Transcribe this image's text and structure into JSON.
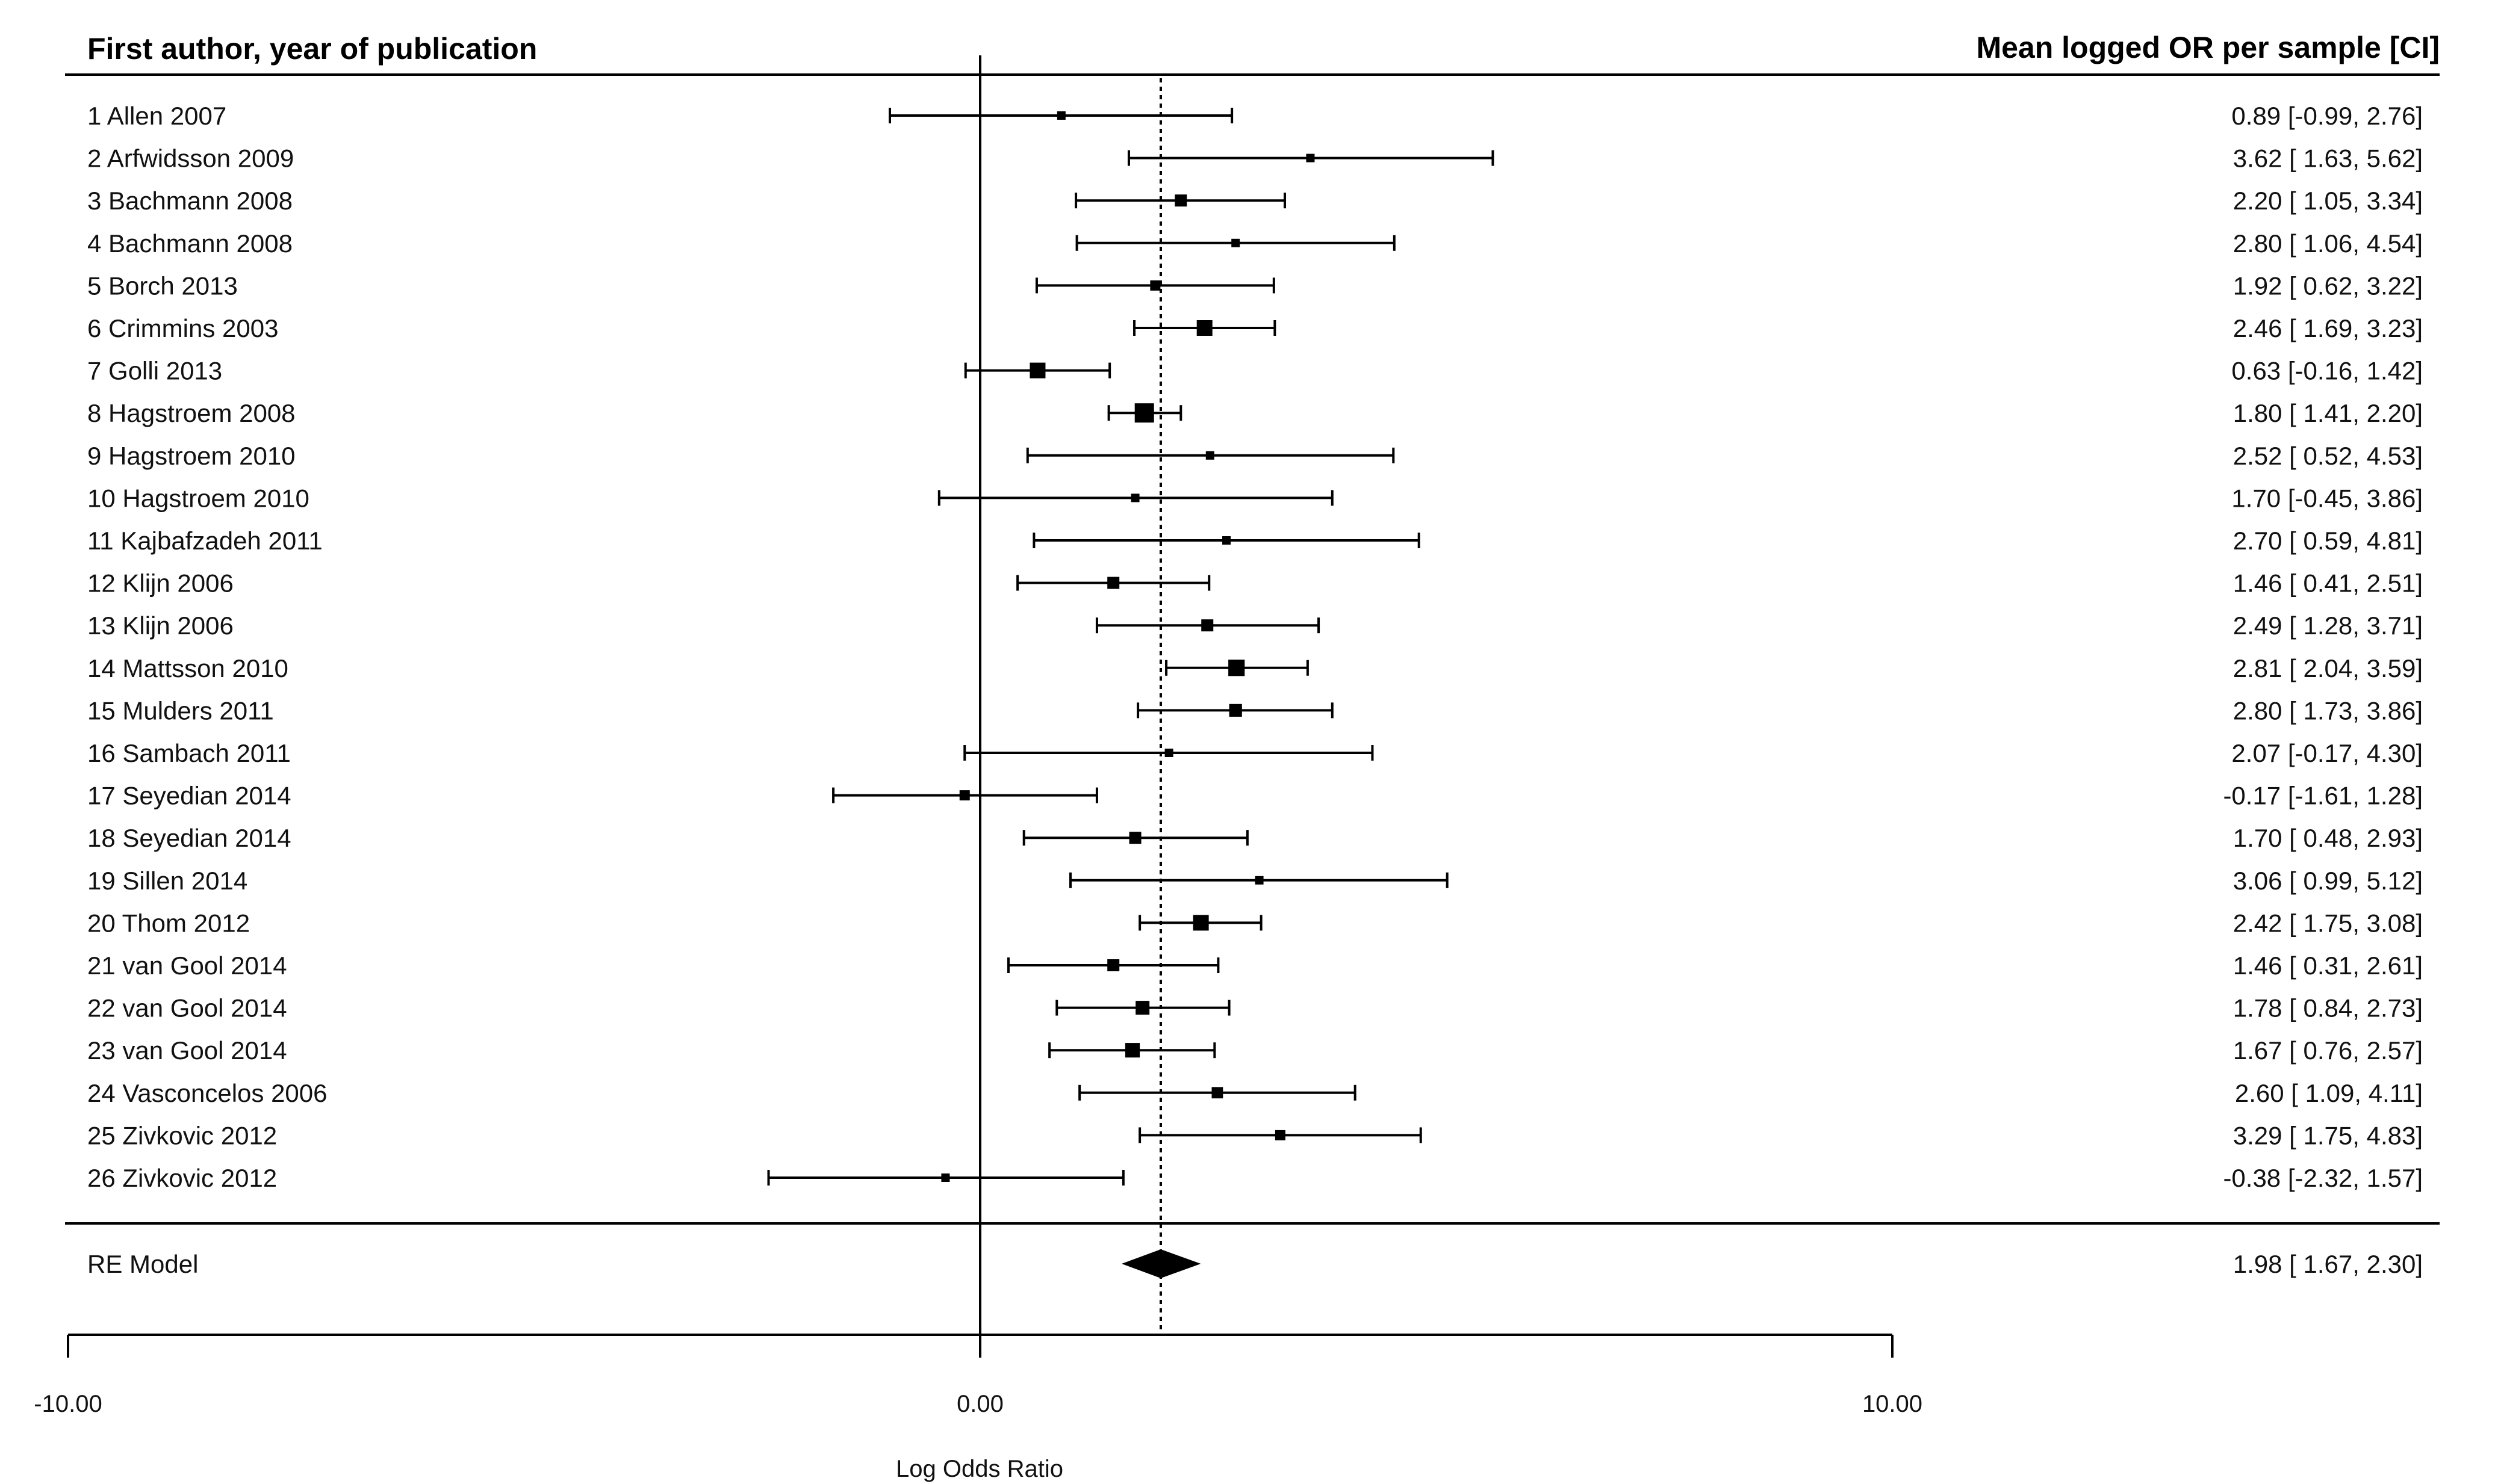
{
  "header": {
    "left": "First author, year of publication",
    "right": "Mean logged OR per sample [CI]"
  },
  "chart_data": {
    "type": "forest",
    "xlabel": "Log Odds Ratio",
    "xlim": [
      -10,
      10
    ],
    "xticks": [
      {
        "value": -10,
        "label": "-10.00"
      },
      {
        "value": 0,
        "label": "0.00"
      },
      {
        "value": 10,
        "label": "10.00"
      }
    ],
    "reference_line": 0,
    "summary_line": 1.98,
    "studies": [
      {
        "label": "1 Allen 2007",
        "est": 0.89,
        "lo": -0.99,
        "hi": 2.76,
        "text": "0.89 [-0.99, 2.76]",
        "weight": 1
      },
      {
        "label": "2 Arfwidsson 2009",
        "est": 3.62,
        "lo": 1.63,
        "hi": 5.62,
        "text": "3.62 [ 1.63, 5.62]",
        "weight": 1
      },
      {
        "label": "3 Bachmann 2008",
        "est": 2.2,
        "lo": 1.05,
        "hi": 3.34,
        "text": "2.20 [ 1.05, 3.34]",
        "weight": 2
      },
      {
        "label": "4 Bachmann 2008",
        "est": 2.8,
        "lo": 1.06,
        "hi": 4.54,
        "text": "2.80 [ 1.06, 4.54]",
        "weight": 1
      },
      {
        "label": "5 Borch 2013",
        "est": 1.92,
        "lo": 0.62,
        "hi": 3.22,
        "text": "1.92 [ 0.62, 3.22]",
        "weight": 1.5
      },
      {
        "label": "6 Crimmins 2003",
        "est": 2.46,
        "lo": 1.69,
        "hi": 3.23,
        "text": "2.46 [ 1.69, 3.23]",
        "weight": 3
      },
      {
        "label": "7 Golli 2013",
        "est": 0.63,
        "lo": -0.16,
        "hi": 1.42,
        "text": "0.63 [-0.16, 1.42]",
        "weight": 3
      },
      {
        "label": "8 Hagstroem 2008",
        "est": 1.8,
        "lo": 1.41,
        "hi": 2.2,
        "text": "1.80 [ 1.41, 2.20]",
        "weight": 4
      },
      {
        "label": "9 Hagstroem 2010",
        "est": 2.52,
        "lo": 0.52,
        "hi": 4.53,
        "text": "2.52 [ 0.52, 4.53]",
        "weight": 1
      },
      {
        "label": "10 Hagstroem 2010",
        "est": 1.7,
        "lo": -0.45,
        "hi": 3.86,
        "text": "1.70 [-0.45, 3.86]",
        "weight": 1
      },
      {
        "label": "11 Kajbafzadeh 2011",
        "est": 2.7,
        "lo": 0.59,
        "hi": 4.81,
        "text": "2.70 [ 0.59, 4.81]",
        "weight": 1
      },
      {
        "label": "12 Klijn 2006",
        "est": 1.46,
        "lo": 0.41,
        "hi": 2.51,
        "text": "1.46 [ 0.41, 2.51]",
        "weight": 2
      },
      {
        "label": "13 Klijn 2006",
        "est": 2.49,
        "lo": 1.28,
        "hi": 3.71,
        "text": "2.49 [ 1.28, 3.71]",
        "weight": 2
      },
      {
        "label": "14 Mattsson 2010",
        "est": 2.81,
        "lo": 2.04,
        "hi": 3.59,
        "text": "2.81 [ 2.04, 3.59]",
        "weight": 3.2
      },
      {
        "label": "15 Mulders 2011",
        "est": 2.8,
        "lo": 1.73,
        "hi": 3.86,
        "text": "2.80 [ 1.73, 3.86]",
        "weight": 2.2
      },
      {
        "label": "16 Sambach 2011",
        "est": 2.07,
        "lo": -0.17,
        "hi": 4.3,
        "text": "2.07 [-0.17, 4.30]",
        "weight": 1
      },
      {
        "label": "17 Seyedian 2014",
        "est": -0.17,
        "lo": -1.61,
        "hi": 1.28,
        "text": "-0.17 [-1.61, 1.28]",
        "weight": 1.5
      },
      {
        "label": "18 Seyedian 2014",
        "est": 1.7,
        "lo": 0.48,
        "hi": 2.93,
        "text": "1.70 [ 0.48, 2.93]",
        "weight": 2
      },
      {
        "label": "19 Sillen 2014",
        "est": 3.06,
        "lo": 0.99,
        "hi": 5.12,
        "text": "3.06 [ 0.99, 5.12]",
        "weight": 1
      },
      {
        "label": "20 Thom 2012",
        "est": 2.42,
        "lo": 1.75,
        "hi": 3.08,
        "text": "2.42 [ 1.75, 3.08]",
        "weight": 3
      },
      {
        "label": "21 van Gool 2014",
        "est": 1.46,
        "lo": 0.31,
        "hi": 2.61,
        "text": "1.46 [ 0.31, 2.61]",
        "weight": 2
      },
      {
        "label": "22 van Gool 2014",
        "est": 1.78,
        "lo": 0.84,
        "hi": 2.73,
        "text": "1.78 [ 0.84, 2.73]",
        "weight": 2.5
      },
      {
        "label": "23 van Gool 2014",
        "est": 1.67,
        "lo": 0.76,
        "hi": 2.57,
        "text": "1.67 [ 0.76, 2.57]",
        "weight": 2.7
      },
      {
        "label": "24 Vasconcelos 2006",
        "est": 2.6,
        "lo": 1.09,
        "hi": 4.11,
        "text": "2.60 [ 1.09, 4.11]",
        "weight": 1.8
      },
      {
        "label": "25 Zivkovic 2012",
        "est": 3.29,
        "lo": 1.75,
        "hi": 4.83,
        "text": "3.29 [ 1.75, 4.83]",
        "weight": 1.5
      },
      {
        "label": "26 Zivkovic 2012",
        "est": -0.38,
        "lo": -2.32,
        "hi": 1.57,
        "text": "-0.38 [-2.32, 1.57]",
        "weight": 1
      }
    ],
    "summary": {
      "label": "RE Model",
      "est": 1.98,
      "lo": 1.67,
      "hi": 2.3,
      "text": "1.98 [ 1.67, 2.30]"
    }
  }
}
